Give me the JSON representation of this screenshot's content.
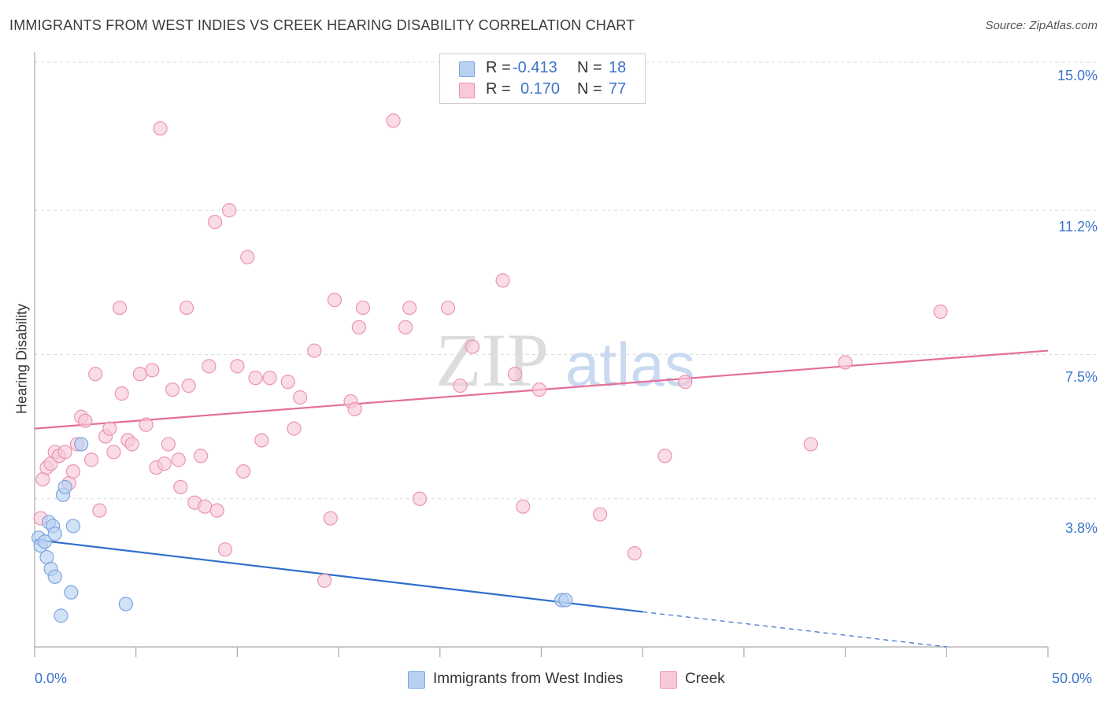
{
  "title": "IMMIGRANTS FROM WEST INDIES VS CREEK HEARING DISABILITY CORRELATION CHART",
  "source": "Source: ZipAtlas.com",
  "watermark": {
    "zip": "ZIP",
    "atlas": "atlas"
  },
  "legend": {
    "r_label": "R =",
    "n_label": "N =",
    "rows": [
      {
        "r": "-0.413",
        "n": "18"
      },
      {
        "r": "0.170",
        "n": "77"
      }
    ]
  },
  "colors": {
    "blue_fill": "#b8d1f1",
    "blue_stroke": "#7ea6de",
    "blue_line": "#2f6fcc",
    "pink_fill": "#f8c9d8",
    "pink_stroke": "#eb94b3",
    "pink_line": "#e46e98",
    "tick_text": "#3b73c9",
    "grid": "#dddddd"
  },
  "chart_data": {
    "type": "scatter",
    "title": "IMMIGRANTS FROM WEST INDIES VS CREEK HEARING DISABILITY CORRELATION CHART",
    "xlabel": "",
    "ylabel": "Hearing Disability",
    "xlim": [
      0,
      50
    ],
    "ylim": [
      0,
      15
    ],
    "x_tick_labels": [
      "0.0%",
      "50.0%"
    ],
    "y_ticks": [
      3.8,
      7.5,
      11.2,
      15.0
    ],
    "y_tick_labels": [
      "3.8%",
      "7.5%",
      "11.2%",
      "15.0%"
    ],
    "grid": "horizontal dashed",
    "legend_position": "top-center",
    "series": [
      {
        "name": "Immigrants from West Indies",
        "color": "#b8d1f1",
        "points": [
          [
            0.2,
            2.8
          ],
          [
            0.3,
            2.6
          ],
          [
            0.5,
            2.7
          ],
          [
            0.6,
            2.3
          ],
          [
            0.7,
            3.2
          ],
          [
            0.8,
            2.0
          ],
          [
            0.9,
            3.1
          ],
          [
            1.0,
            1.8
          ],
          [
            1.0,
            2.9
          ],
          [
            1.3,
            0.8
          ],
          [
            1.4,
            3.9
          ],
          [
            1.5,
            4.1
          ],
          [
            1.8,
            1.4
          ],
          [
            1.9,
            3.1
          ],
          [
            2.3,
            5.2
          ],
          [
            4.5,
            1.1
          ],
          [
            26.0,
            1.2
          ],
          [
            26.2,
            1.2
          ]
        ],
        "trend": {
          "x": [
            0,
            30
          ],
          "y": [
            2.75,
            0.9
          ]
        },
        "trend_extension": {
          "x": [
            30,
            45
          ],
          "y": [
            0.9,
            0.0
          ]
        }
      },
      {
        "name": "Creek",
        "color": "#f8c9d8",
        "points": [
          [
            0.3,
            3.3
          ],
          [
            0.4,
            4.3
          ],
          [
            0.6,
            4.6
          ],
          [
            0.8,
            4.7
          ],
          [
            1.0,
            5.0
          ],
          [
            1.2,
            4.9
          ],
          [
            1.5,
            5.0
          ],
          [
            1.7,
            4.2
          ],
          [
            1.9,
            4.5
          ],
          [
            2.1,
            5.2
          ],
          [
            2.3,
            5.9
          ],
          [
            2.5,
            5.8
          ],
          [
            2.8,
            4.8
          ],
          [
            3.0,
            7.0
          ],
          [
            3.2,
            3.5
          ],
          [
            3.5,
            5.4
          ],
          [
            3.7,
            5.6
          ],
          [
            3.9,
            5.0
          ],
          [
            4.2,
            8.7
          ],
          [
            4.3,
            6.5
          ],
          [
            4.6,
            5.3
          ],
          [
            4.8,
            5.2
          ],
          [
            5.2,
            7.0
          ],
          [
            5.5,
            5.7
          ],
          [
            5.8,
            7.1
          ],
          [
            6.0,
            4.6
          ],
          [
            6.2,
            13.3
          ],
          [
            6.4,
            4.7
          ],
          [
            6.6,
            5.2
          ],
          [
            6.8,
            6.6
          ],
          [
            7.1,
            4.8
          ],
          [
            7.2,
            4.1
          ],
          [
            7.5,
            8.7
          ],
          [
            7.6,
            6.7
          ],
          [
            7.9,
            3.7
          ],
          [
            8.2,
            4.9
          ],
          [
            8.4,
            3.6
          ],
          [
            8.6,
            7.2
          ],
          [
            8.9,
            10.9
          ],
          [
            9.0,
            3.5
          ],
          [
            9.4,
            2.5
          ],
          [
            9.6,
            11.2
          ],
          [
            10.0,
            7.2
          ],
          [
            10.3,
            4.5
          ],
          [
            10.5,
            10.0
          ],
          [
            10.9,
            6.9
          ],
          [
            11.2,
            5.3
          ],
          [
            11.6,
            6.9
          ],
          [
            12.5,
            6.8
          ],
          [
            12.8,
            5.6
          ],
          [
            13.1,
            6.4
          ],
          [
            13.8,
            7.6
          ],
          [
            14.3,
            1.7
          ],
          [
            14.6,
            3.3
          ],
          [
            14.8,
            8.9
          ],
          [
            15.6,
            6.3
          ],
          [
            15.8,
            6.1
          ],
          [
            16.0,
            8.2
          ],
          [
            16.2,
            8.7
          ],
          [
            17.7,
            13.5
          ],
          [
            18.3,
            8.2
          ],
          [
            18.5,
            8.7
          ],
          [
            19.0,
            3.8
          ],
          [
            20.4,
            8.7
          ],
          [
            21.0,
            6.7
          ],
          [
            21.6,
            7.7
          ],
          [
            23.1,
            9.4
          ],
          [
            23.7,
            7.0
          ],
          [
            24.1,
            3.6
          ],
          [
            24.9,
            6.6
          ],
          [
            27.9,
            3.4
          ],
          [
            29.6,
            2.4
          ],
          [
            31.1,
            4.9
          ],
          [
            32.1,
            6.8
          ],
          [
            38.3,
            5.2
          ],
          [
            40.0,
            7.3
          ],
          [
            44.7,
            8.6
          ]
        ],
        "trend": {
          "x": [
            0,
            50
          ],
          "y": [
            5.6,
            7.6
          ]
        }
      }
    ]
  }
}
